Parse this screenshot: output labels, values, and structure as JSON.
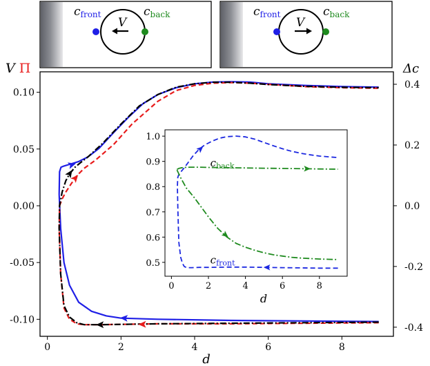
{
  "diagrams": [
    {
      "c_front_label": "c",
      "c_front_sub": "front",
      "c_back_label": "c",
      "c_back_sub": "back",
      "velocity_label": "V",
      "arrow": "left"
    },
    {
      "c_front_label": "c",
      "c_front_sub": "front",
      "c_back_label": "c",
      "c_back_sub": "back",
      "velocity_label": "V",
      "arrow": "right"
    }
  ],
  "colors": {
    "blue": "#1f1fe6",
    "red": "#e81c1c",
    "black": "#000000",
    "green": "#1e8a1e",
    "blue_dash": "#1c28e0"
  },
  "chart_data": [
    {
      "type": "line",
      "title": "",
      "xlabel": "d",
      "ylabel_left": "V",
      "ylabel_left_second": "Π",
      "ylabel_right": "Δc",
      "xlim": [
        -0.2,
        9.4
      ],
      "ylim": [
        -0.115,
        0.118
      ],
      "ylim_right": [
        -0.43,
        0.441
      ],
      "x_ticks": [
        "0",
        "2",
        "4",
        "6",
        "8"
      ],
      "y_ticks": [
        "0.10",
        "0.05",
        "0.00",
        "-0.05",
        "-0.10"
      ],
      "y_ticks_right": [
        "0.4",
        "0.2",
        "0.0",
        "-0.2",
        "-0.4"
      ],
      "series": [
        {
          "name": "V",
          "color": "#1f1fe6",
          "style": "solid",
          "x": [
            9.0,
            7.0,
            5.0,
            3.0,
            2.0,
            1.6,
            1.2,
            0.85,
            0.6,
            0.45,
            0.36,
            0.32,
            0.33,
            0.37,
            0.45,
            0.6,
            0.85,
            1.1,
            1.4,
            1.8,
            2.2,
            2.6,
            3.0,
            3.5,
            4.0,
            4.5,
            5.0,
            5.5,
            6.0,
            7.0,
            8.0,
            9.0
          ],
          "y": [
            -0.102,
            -0.1015,
            -0.101,
            -0.1,
            -0.099,
            -0.097,
            -0.093,
            -0.085,
            -0.07,
            -0.05,
            -0.02,
            0.01,
            0.03,
            0.034,
            0.035,
            0.0365,
            0.039,
            0.043,
            0.0505,
            0.0645,
            0.078,
            0.09,
            0.098,
            0.104,
            0.1075,
            0.109,
            0.1093,
            0.109,
            0.1075,
            0.106,
            0.105,
            0.1045
          ],
          "arrow_points": [
            [
              0.65,
              0.036
            ],
            [
              2.1,
              -0.099
            ]
          ]
        },
        {
          "name": "Π",
          "color": "#e81c1c",
          "style": "dashed",
          "x": [
            9.0,
            7.0,
            5.0,
            3.0,
            2.0,
            1.4,
            1.0,
            0.8,
            0.6,
            0.45,
            0.36,
            0.32,
            0.33,
            0.4,
            0.5,
            0.65,
            0.8,
            1.0,
            1.3,
            1.8,
            2.3,
            3.0,
            3.5,
            4.0,
            4.5,
            5.0,
            5.5,
            6.0,
            7.0,
            8.0,
            9.0
          ],
          "y": [
            -0.103,
            -0.1035,
            -0.104,
            -0.104,
            -0.1045,
            -0.1048,
            -0.1048,
            -0.104,
            -0.1,
            -0.09,
            -0.06,
            -0.02,
            0.0,
            0.006,
            0.012,
            0.0195,
            0.0265,
            0.033,
            0.04,
            0.054,
            0.072,
            0.092,
            0.1015,
            0.106,
            0.108,
            0.1085,
            0.108,
            0.107,
            0.105,
            0.104,
            0.1035
          ],
          "arrow_points": [
            [
              0.75,
              0.024
            ],
            [
              2.6,
              -0.1045
            ]
          ]
        },
        {
          "name": "Δc",
          "color": "#000000",
          "style": "dashdot",
          "x": [
            9.0,
            7.0,
            5.0,
            3.0,
            2.0,
            1.4,
            1.0,
            0.8,
            0.6,
            0.45,
            0.36,
            0.32,
            0.33,
            0.4,
            0.5,
            0.6,
            0.75,
            0.9,
            1.1,
            1.5,
            2.0,
            2.5,
            3.0,
            3.5,
            4.0,
            4.5,
            5.0,
            5.5,
            6.0,
            7.0,
            8.0,
            9.0
          ],
          "y": [
            -0.1025,
            -0.103,
            -0.1035,
            -0.104,
            -0.1045,
            -0.1048,
            -0.1048,
            -0.103,
            -0.098,
            -0.088,
            -0.06,
            -0.02,
            0.0,
            0.012,
            0.022,
            0.028,
            0.034,
            0.038,
            0.043,
            0.055,
            0.072,
            0.088,
            0.098,
            0.1045,
            0.1075,
            0.1088,
            0.1088,
            0.108,
            0.1068,
            0.1052,
            0.1044,
            0.104
          ],
          "arrow_points": [
            [
              0.6,
              0.028
            ],
            [
              1.45,
              -0.1048
            ]
          ]
        }
      ]
    },
    {
      "type": "line",
      "title": "",
      "xlabel": "d",
      "ylabel": "",
      "xlim": [
        -0.35,
        9.5
      ],
      "ylim": [
        0.445,
        1.025
      ],
      "x_ticks": [
        "0",
        "2",
        "4",
        "6",
        "8"
      ],
      "y_ticks": [
        "1.0",
        "0.9",
        "0.8",
        "0.7",
        "0.6",
        "0.5"
      ],
      "annotations": [
        {
          "text": "c",
          "sub": "back",
          "x": 2.1,
          "y": 0.88
        },
        {
          "text": "c",
          "sub": "front",
          "x": 2.1,
          "y": 0.495
        }
      ],
      "series": [
        {
          "name": "c_front",
          "color": "#1c28e0",
          "style": "dashed",
          "x": [
            9.0,
            8.0,
            7.0,
            6.0,
            5.0,
            4.0,
            3.0,
            2.0,
            1.5,
            1.1,
            0.9,
            0.8,
            0.7,
            0.6,
            0.5,
            0.4,
            0.35,
            0.32,
            0.34,
            0.38,
            0.44,
            0.55,
            0.7,
            0.9,
            1.2,
            1.5,
            1.8,
            2.2,
            2.6,
            3.0,
            3.5,
            4.0,
            4.5,
            5.0,
            5.5,
            6.0,
            6.5,
            7.0,
            7.5,
            8.0,
            8.5,
            9.0
          ],
          "y": [
            0.477,
            0.477,
            0.478,
            0.479,
            0.48,
            0.481,
            0.481,
            0.48,
            0.48,
            0.479,
            0.479,
            0.48,
            0.483,
            0.495,
            0.52,
            0.58,
            0.7,
            0.8,
            0.835,
            0.845,
            0.852,
            0.862,
            0.875,
            0.895,
            0.925,
            0.948,
            0.965,
            0.98,
            0.992,
            0.998,
            1.0,
            0.997,
            0.988,
            0.975,
            0.962,
            0.95,
            0.94,
            0.932,
            0.926,
            0.921,
            0.918,
            0.915
          ],
          "arrow_points": [
            [
              1.55,
              0.948
            ],
            [
              5.2,
              0.48
            ]
          ]
        },
        {
          "name": "c_back",
          "color": "#1e8a1e",
          "style": "dashdot",
          "x": [
            0.3,
            0.4,
            0.5,
            0.7,
            1.0,
            1.5,
            2.0,
            3.0,
            4.0,
            5.0,
            6.0,
            7.0,
            8.0,
            9.0
          ],
          "y": [
            0.868,
            0.872,
            0.874,
            0.876,
            0.877,
            0.877,
            0.876,
            0.875,
            0.874,
            0.873,
            0.872,
            0.871,
            0.87,
            0.869
          ],
          "arrow_points": [
            [
              7.3,
              0.871
            ]
          ]
        },
        {
          "name": "c_back_decay",
          "color": "#1e8a1e",
          "style": "dashdot",
          "x": [
            0.3,
            0.5,
            0.8,
            1.2,
            1.6,
            2.0,
            2.5,
            3.0,
            3.5,
            4.0,
            4.5,
            5.0,
            5.5,
            6.0,
            6.5,
            7.0,
            7.5,
            8.0,
            8.5,
            9.0
          ],
          "y": [
            0.866,
            0.835,
            0.795,
            0.76,
            0.72,
            0.68,
            0.635,
            0.6,
            0.575,
            0.56,
            0.548,
            0.538,
            0.53,
            0.525,
            0.52,
            0.517,
            0.515,
            0.513,
            0.512,
            0.511
          ],
          "arrow_points": [
            [
              2.9,
              0.61
            ]
          ]
        }
      ]
    }
  ]
}
